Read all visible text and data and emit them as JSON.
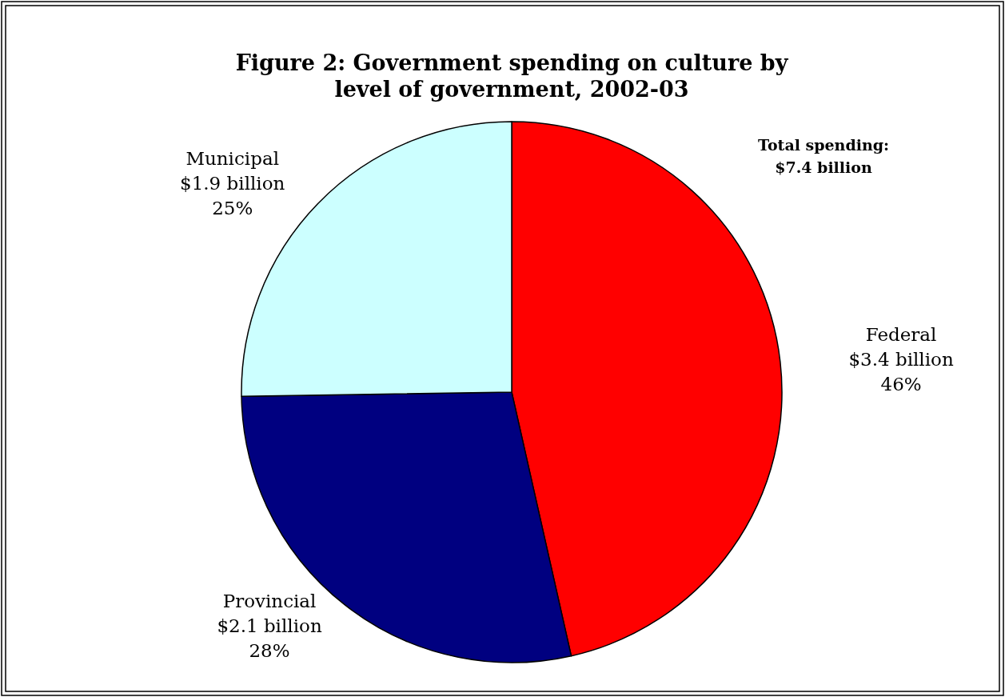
{
  "chart_data": {
    "type": "pie",
    "title": "Figure 2: Government spending on culture by level of government, 2002-03",
    "categories": [
      "Federal",
      "Provincial",
      "Municipal"
    ],
    "values": [
      46,
      28,
      25
    ],
    "colors": [
      "#ff0000",
      "#000080",
      "#ccffff"
    ],
    "value_labels": [
      "$3.4 billion\n46%",
      "$2.1 billion\n28%",
      "$1.9 billion\n25%"
    ],
    "annotations": [
      "Total spending:\n$7.4 billion"
    ]
  }
}
